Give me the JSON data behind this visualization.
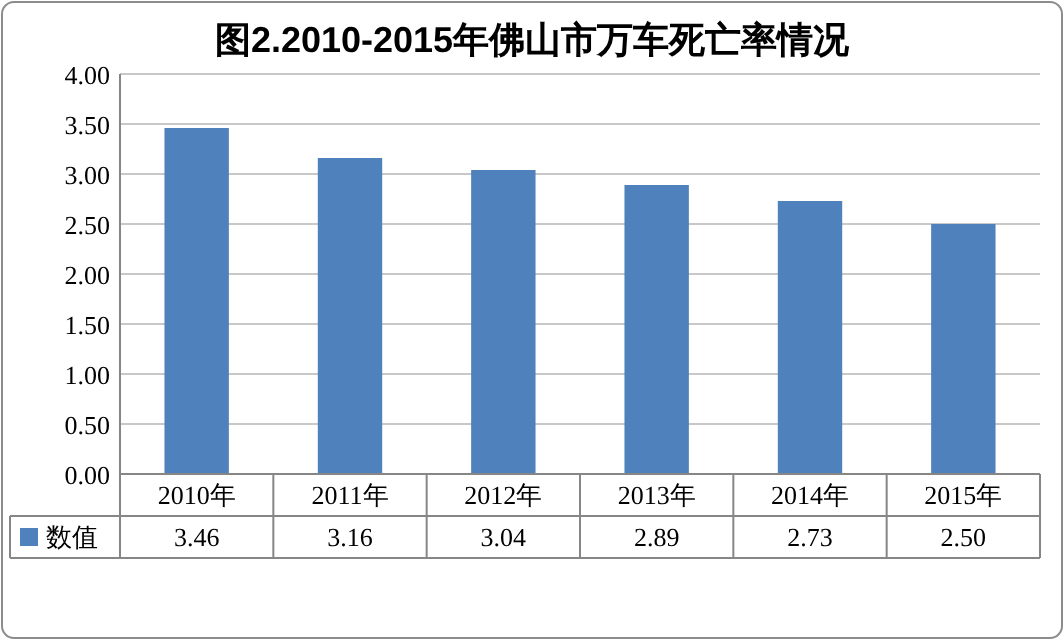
{
  "chart_data": {
    "type": "bar",
    "title": "图2.2010-2015年佛山市万车死亡率情况",
    "categories": [
      "2010年",
      "2011年",
      "2012年",
      "2013年",
      "2014年",
      "2015年"
    ],
    "series": [
      {
        "name": "数值",
        "color": "#4f81bd",
        "values": [
          3.46,
          3.16,
          3.04,
          2.89,
          2.73,
          2.5
        ],
        "value_labels": [
          "3.46",
          "3.16",
          "3.04",
          "2.89",
          "2.73",
          "2.50"
        ]
      }
    ],
    "ylim": [
      0,
      4
    ],
    "yticks": [
      {
        "value": 0,
        "label": "0.00"
      },
      {
        "value": 0.5,
        "label": "0.50"
      },
      {
        "value": 1,
        "label": "1.00"
      },
      {
        "value": 1.5,
        "label": "1.50"
      },
      {
        "value": 2,
        "label": "2.00"
      },
      {
        "value": 2.5,
        "label": "2.50"
      },
      {
        "value": 3,
        "label": "3.00"
      },
      {
        "value": 3.5,
        "label": "3.50"
      },
      {
        "value": 4,
        "label": "4.00"
      }
    ],
    "grid": "y",
    "legend": "bottom"
  }
}
